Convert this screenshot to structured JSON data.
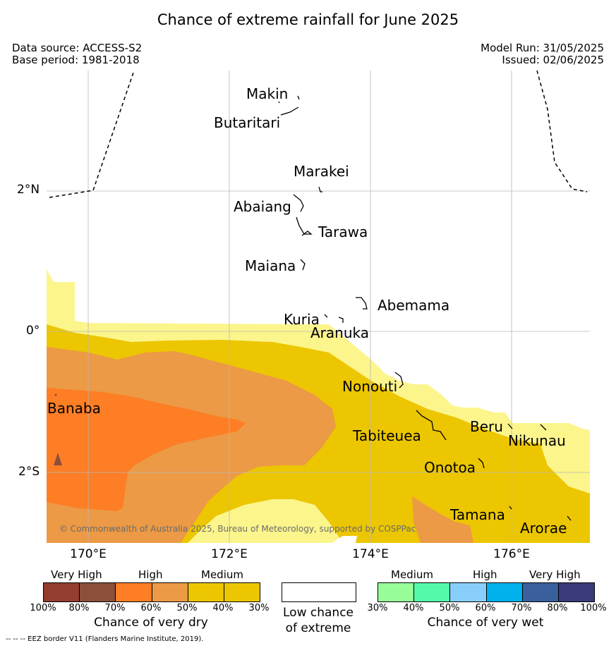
{
  "title": "Chance of extreme rainfall for June 2025",
  "header": {
    "data_source": "Data source: ACCESS-S2",
    "base_period": "Base period: 1981-2018",
    "model_run": "Model Run: 31/05/2025",
    "issued": "Issued: 02/06/2025"
  },
  "map": {
    "lat_ticks": [
      "2°N",
      "0°",
      "2°S"
    ],
    "lon_ticks": [
      "170°E",
      "172°E",
      "174°E",
      "176°E"
    ],
    "copyright": "© Commonwealth of Australia 2025, Bureau of Meteorology, supported by COSPPac",
    "labels": {
      "makin": "Makin",
      "butaritari": "Butaritari",
      "marakei": "Marakei",
      "abaiang": "Abaiang",
      "tarawa": "Tarawa",
      "maiana": "Maiana",
      "abemama": "Abemama",
      "kuria": "Kuria",
      "aranuka": "Aranuka",
      "nonouti": "Nonouti",
      "banaba": "Banaba",
      "beru": "Beru",
      "tabiteuea": "Tabiteuea",
      "nikunau": "Nikunau",
      "onotoa": "Onotoa",
      "tamana": "Tamana",
      "arorae": "Arorae"
    },
    "colors": {
      "dry_medium_30": "#fcf58c",
      "dry_medium_40": "#ecc600",
      "dry_high_50": "#ec9a45",
      "dry_high_60": "#fd7e25"
    }
  },
  "legend": {
    "dry": {
      "groups": [
        "Very High",
        "High",
        "Medium"
      ],
      "ticks": [
        "100%",
        "80%",
        "70%",
        "60%",
        "50%",
        "40%",
        "30%"
      ],
      "colors": [
        "#933d30",
        "#8b4f3c",
        "#fd7e25",
        "#ec9a45",
        "#ecc600",
        "#ecc600",
        "#fcf58c"
      ],
      "caption": "Chance of very dry"
    },
    "neutral": {
      "line1": "Low chance",
      "line2": "of extreme",
      "color": "#ffffff"
    },
    "wet": {
      "groups": [
        "Medium",
        "High",
        "Very High"
      ],
      "ticks": [
        "30%",
        "40%",
        "50%",
        "60%",
        "70%",
        "80%",
        "100%"
      ],
      "colors": [
        "#98fd98",
        "#56f9a9",
        "#87cefa",
        "#00b1ec",
        "#3a5f9d",
        "#3a3b7b"
      ],
      "caption": "Chance of very wet"
    }
  },
  "footnote": "--  --  -- EEZ border V11 (Flanders Marine Institute, 2019)."
}
